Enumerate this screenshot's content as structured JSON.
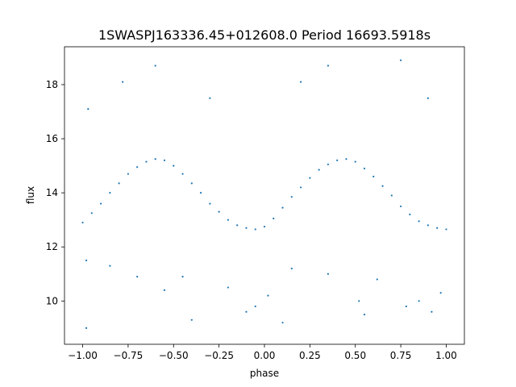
{
  "chart_data": {
    "type": "scatter",
    "title": "1SWASPJ163336.45+012608.0 Period 16693.5918s",
    "xlabel": "phase",
    "ylabel": "flux",
    "xlim": [
      -1.1,
      1.1
    ],
    "ylim": [
      8.4,
      19.4
    ],
    "xticks": [
      -1.0,
      -0.75,
      -0.5,
      -0.25,
      0.0,
      0.25,
      0.5,
      0.75,
      1.0
    ],
    "xtick_labels": [
      "−1.00",
      "−0.75",
      "−0.50",
      "−0.25",
      "0.00",
      "0.25",
      "0.50",
      "0.75",
      "1.00"
    ],
    "yticks": [
      10,
      12,
      14,
      16,
      18
    ],
    "ytick_labels": [
      "10",
      "12",
      "14",
      "16",
      "18"
    ],
    "grid": false,
    "point_color": "#1f77b4",
    "series": [
      {
        "points": [
          [
            -1.0,
            12.9
          ],
          [
            -0.95,
            13.25
          ],
          [
            -0.9,
            13.6
          ],
          [
            -0.85,
            14.0
          ],
          [
            -0.8,
            14.35
          ],
          [
            -0.75,
            14.7
          ],
          [
            -0.7,
            14.95
          ],
          [
            -0.65,
            15.15
          ],
          [
            -0.6,
            15.25
          ],
          [
            -0.55,
            15.2
          ],
          [
            -0.5,
            15.0
          ],
          [
            -0.45,
            14.7
          ],
          [
            -0.4,
            14.35
          ],
          [
            -0.35,
            14.0
          ],
          [
            -0.3,
            13.6
          ],
          [
            -0.25,
            13.3
          ],
          [
            -0.2,
            13.0
          ],
          [
            -0.15,
            12.8
          ],
          [
            -0.1,
            12.7
          ],
          [
            -0.05,
            12.65
          ],
          [
            0.0,
            12.75
          ],
          [
            0.05,
            13.05
          ],
          [
            0.1,
            13.45
          ],
          [
            0.15,
            13.85
          ],
          [
            0.2,
            14.2
          ],
          [
            0.25,
            14.55
          ],
          [
            0.3,
            14.85
          ],
          [
            0.35,
            15.05
          ],
          [
            0.4,
            15.2
          ],
          [
            0.45,
            15.25
          ],
          [
            0.5,
            15.15
          ],
          [
            0.55,
            14.9
          ],
          [
            0.6,
            14.6
          ],
          [
            0.65,
            14.25
          ],
          [
            0.7,
            13.9
          ],
          [
            0.75,
            13.5
          ],
          [
            0.8,
            13.2
          ],
          [
            0.85,
            12.95
          ],
          [
            0.9,
            12.8
          ],
          [
            0.95,
            12.7
          ],
          [
            1.0,
            12.65
          ],
          [
            -0.98,
            11.5
          ],
          [
            -0.85,
            11.3
          ],
          [
            -0.7,
            10.9
          ],
          [
            -0.55,
            10.4
          ],
          [
            -0.45,
            10.9
          ],
          [
            -0.2,
            10.5
          ],
          [
            -0.1,
            9.6
          ],
          [
            -0.05,
            9.8
          ],
          [
            0.02,
            10.2
          ],
          [
            0.15,
            11.2
          ],
          [
            0.35,
            11.0
          ],
          [
            0.52,
            10.0
          ],
          [
            0.62,
            10.8
          ],
          [
            0.78,
            9.8
          ],
          [
            0.85,
            10.0
          ],
          [
            0.92,
            9.6
          ],
          [
            0.97,
            10.3
          ],
          [
            -0.98,
            9.0
          ],
          [
            -0.78,
            18.1
          ],
          [
            -0.6,
            18.7
          ],
          [
            -0.3,
            17.5
          ],
          [
            0.2,
            18.1
          ],
          [
            0.35,
            18.7
          ],
          [
            0.75,
            18.9
          ],
          [
            0.9,
            17.5
          ],
          [
            -0.97,
            17.1
          ],
          [
            -0.4,
            9.3
          ],
          [
            0.1,
            9.2
          ],
          [
            0.55,
            9.5
          ]
        ]
      }
    ]
  }
}
